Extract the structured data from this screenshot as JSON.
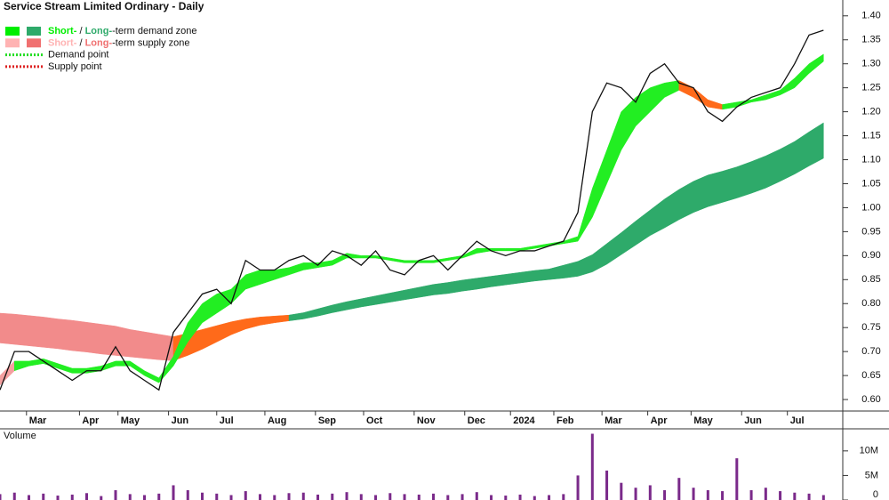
{
  "chart_data": [
    {
      "type": "line",
      "title": "Service Stream Limited Ordinary - Daily",
      "color": "#111111",
      "x": [
        0,
        6,
        12,
        18,
        24,
        30,
        36,
        42,
        48,
        54,
        60,
        66,
        72,
        78,
        84,
        90,
        96,
        102,
        108,
        114,
        120,
        126,
        132,
        138,
        144,
        150,
        156,
        162,
        168,
        174,
        180,
        186,
        192,
        198,
        204,
        210,
        216,
        222,
        228,
        234,
        240,
        246,
        252,
        258,
        264,
        270,
        276,
        282,
        288,
        294,
        300,
        306,
        312,
        318,
        324,
        330,
        336,
        342
      ],
      "values": [
        0.62,
        0.7,
        0.7,
        0.68,
        0.66,
        0.64,
        0.66,
        0.66,
        0.71,
        0.66,
        0.64,
        0.62,
        0.74,
        0.78,
        0.82,
        0.83,
        0.8,
        0.89,
        0.87,
        0.87,
        0.89,
        0.9,
        0.88,
        0.91,
        0.9,
        0.88,
        0.91,
        0.87,
        0.86,
        0.89,
        0.9,
        0.87,
        0.9,
        0.93,
        0.91,
        0.9,
        0.91,
        0.91,
        0.92,
        0.93,
        0.99,
        1.2,
        1.26,
        1.25,
        1.22,
        1.28,
        1.3,
        1.26,
        1.25,
        1.2,
        1.18,
        1.21,
        1.23,
        1.24,
        1.25,
        1.3,
        1.36,
        1.37
      ],
      "bands": [
        {
          "lower": [
            0.718,
            0.715,
            0.712,
            0.709,
            0.706,
            0.702,
            0.699,
            0.695,
            0.692,
            0.689,
            0.686,
            0.683,
            0.681,
            0.692,
            0.705,
            0.72,
            0.735,
            0.747,
            0.755,
            0.76,
            0.764,
            0.768,
            0.774,
            0.781,
            0.787,
            0.793,
            0.798,
            0.803,
            0.808,
            0.813,
            0.818,
            0.821,
            0.826,
            0.83,
            0.835,
            0.839,
            0.843,
            0.847,
            0.85,
            0.853,
            0.857,
            0.866,
            0.882,
            0.902,
            0.922,
            0.942,
            0.958,
            0.975,
            0.99,
            1.002,
            1.011,
            1.02,
            1.03,
            1.041,
            1.055,
            1.07,
            1.087,
            1.103
          ],
          "upper": [
            0.78,
            0.778,
            0.775,
            0.772,
            0.768,
            0.765,
            0.761,
            0.757,
            0.753,
            0.746,
            0.741,
            0.736,
            0.731,
            0.738,
            0.746,
            0.754,
            0.762,
            0.768,
            0.772,
            0.774,
            0.776,
            0.781,
            0.789,
            0.797,
            0.804,
            0.81,
            0.816,
            0.822,
            0.828,
            0.834,
            0.84,
            0.844,
            0.849,
            0.853,
            0.857,
            0.861,
            0.865,
            0.869,
            0.872,
            0.88,
            0.888,
            0.902,
            0.925,
            0.948,
            0.972,
            0.995,
            1.018,
            1.038,
            1.055,
            1.068,
            1.076,
            1.085,
            1.096,
            1.108,
            1.122,
            1.138,
            1.158,
            1.177
          ],
          "zones": [
            {
              "x": 0,
              "color": "#f28b8b"
            },
            {
              "x": 72,
              "color": "#ff6a1a"
            },
            {
              "x": 120,
              "color": "#2eaa6a"
            }
          ]
        },
        {
          "lower": [
            0.63,
            0.66,
            0.67,
            0.675,
            0.665,
            0.655,
            0.655,
            0.66,
            0.67,
            0.67,
            0.65,
            0.635,
            0.67,
            0.72,
            0.76,
            0.78,
            0.8,
            0.83,
            0.84,
            0.85,
            0.86,
            0.87,
            0.875,
            0.88,
            0.895,
            0.895,
            0.895,
            0.89,
            0.885,
            0.885,
            0.885,
            0.89,
            0.895,
            0.905,
            0.91,
            0.91,
            0.91,
            0.915,
            0.92,
            0.925,
            0.93,
            0.98,
            1.05,
            1.12,
            1.17,
            1.2,
            1.23,
            1.245,
            1.23,
            1.21,
            1.205,
            1.21,
            1.22,
            1.225,
            1.235,
            1.25,
            1.28,
            1.305
          ],
          "upper": [
            0.65,
            0.68,
            0.68,
            0.685,
            0.675,
            0.665,
            0.665,
            0.67,
            0.68,
            0.68,
            0.66,
            0.645,
            0.69,
            0.76,
            0.8,
            0.82,
            0.83,
            0.86,
            0.87,
            0.87,
            0.875,
            0.885,
            0.885,
            0.89,
            0.905,
            0.9,
            0.9,
            0.895,
            0.89,
            0.89,
            0.89,
            0.895,
            0.9,
            0.915,
            0.915,
            0.915,
            0.915,
            0.92,
            0.925,
            0.93,
            0.94,
            1.04,
            1.12,
            1.2,
            1.23,
            1.25,
            1.26,
            1.265,
            1.25,
            1.225,
            1.215,
            1.22,
            1.225,
            1.235,
            1.245,
            1.27,
            1.3,
            1.32
          ],
          "zones": [
            {
              "x": 0,
              "color": "#f4a0a0"
            },
            {
              "x": 6,
              "color": "#22ee22"
            },
            {
              "x": 282,
              "color": "#ff6a1a"
            },
            {
              "x": 300,
              "color": "#22ee22"
            }
          ]
        }
      ],
      "legend": [
        {
          "short": "Short-",
          "sep": " / ",
          "long": "Long-",
          "text": "-term demand zone",
          "short_color": "#00ee00",
          "long_color": "#2eaa6a"
        },
        {
          "short": "Short-",
          "sep": " / ",
          "long": "Long-",
          "text": "-term supply zone",
          "short_color": "#ffb3b3",
          "long_color": "#f07070"
        },
        {
          "label": "Demand point",
          "color": "#22dd22"
        },
        {
          "label": "Supply point",
          "color": "#dd2222"
        }
      ],
      "xlim": [
        0,
        350
      ],
      "xticks": [
        {
          "value": 11,
          "label": "Mar"
        },
        {
          "value": 33,
          "label": "Apr"
        },
        {
          "value": 49,
          "label": "May"
        },
        {
          "value": 70,
          "label": "Jun"
        },
        {
          "value": 90,
          "label": "Jul"
        },
        {
          "value": 110,
          "label": "Aug"
        },
        {
          "value": 131,
          "label": "Sep"
        },
        {
          "value": 151,
          "label": "Oct"
        },
        {
          "value": 172,
          "label": "Nov"
        },
        {
          "value": 193,
          "label": "Dec"
        },
        {
          "value": 212,
          "label": "2024"
        },
        {
          "value": 230,
          "label": "Feb"
        },
        {
          "value": 250,
          "label": "Mar"
        },
        {
          "value": 269,
          "label": "Apr"
        },
        {
          "value": 287,
          "label": "May"
        },
        {
          "value": 308,
          "label": "Jun"
        },
        {
          "value": 327,
          "label": "Jul"
        }
      ],
      "ylim": [
        0.576,
        1.433
      ],
      "yticks": [
        {
          "value": 0.6,
          "label": "0.60"
        },
        {
          "value": 0.65,
          "label": "0.65"
        },
        {
          "value": 0.7,
          "label": "0.70"
        },
        {
          "value": 0.75,
          "label": "0.75"
        },
        {
          "value": 0.8,
          "label": "0.80"
        },
        {
          "value": 0.85,
          "label": "0.85"
        },
        {
          "value": 0.9,
          "label": "0.90"
        },
        {
          "value": 0.95,
          "label": "0.95"
        },
        {
          "value": 1.0,
          "label": "1.00"
        },
        {
          "value": 1.05,
          "label": "1.05"
        },
        {
          "value": 1.1,
          "label": "1.10"
        },
        {
          "value": 1.15,
          "label": "1.15"
        },
        {
          "value": 1.2,
          "label": "1.20"
        },
        {
          "value": 1.25,
          "label": "1.25"
        },
        {
          "value": 1.3,
          "label": "1.30"
        },
        {
          "value": 1.35,
          "label": "1.35"
        },
        {
          "value": 1.4,
          "label": "1.40"
        }
      ]
    },
    {
      "type": "bar",
      "title": "Volume",
      "color": "#7a2a8a",
      "x": [
        0,
        6,
        12,
        18,
        24,
        30,
        36,
        42,
        48,
        54,
        60,
        66,
        72,
        78,
        84,
        90,
        96,
        102,
        108,
        114,
        120,
        126,
        132,
        138,
        144,
        150,
        156,
        162,
        168,
        174,
        180,
        186,
        192,
        198,
        204,
        210,
        216,
        222,
        228,
        234,
        240,
        246,
        252,
        258,
        264,
        270,
        276,
        282,
        288,
        294,
        300,
        306,
        312,
        318,
        324,
        330,
        336,
        342
      ],
      "values": [
        1200000,
        1500000,
        1000000,
        1300000,
        900000,
        1100000,
        1400000,
        800000,
        2000000,
        1200000,
        1000000,
        1300000,
        3000000,
        2000000,
        1500000,
        1300000,
        1000000,
        1800000,
        1200000,
        1000000,
        1400000,
        1500000,
        1100000,
        1300000,
        1600000,
        1200000,
        1000000,
        1400000,
        1200000,
        1100000,
        1300000,
        1000000,
        1200000,
        1600000,
        1000000,
        900000,
        1100000,
        800000,
        1000000,
        1200000,
        5000000,
        13500000,
        6000000,
        3500000,
        2500000,
        3000000,
        2000000,
        4500000,
        2500000,
        2000000,
        1800000,
        8500000,
        2000000,
        2500000,
        1800000,
        1500000,
        1300000,
        1000000
      ],
      "xlim": [
        0,
        350
      ],
      "ylim": [
        0,
        14500000
      ],
      "yticks": [
        {
          "value": 0,
          "label": "0"
        },
        {
          "value": 5000000,
          "label": "5M"
        },
        {
          "value": 10000000,
          "label": "10M"
        }
      ]
    }
  ]
}
